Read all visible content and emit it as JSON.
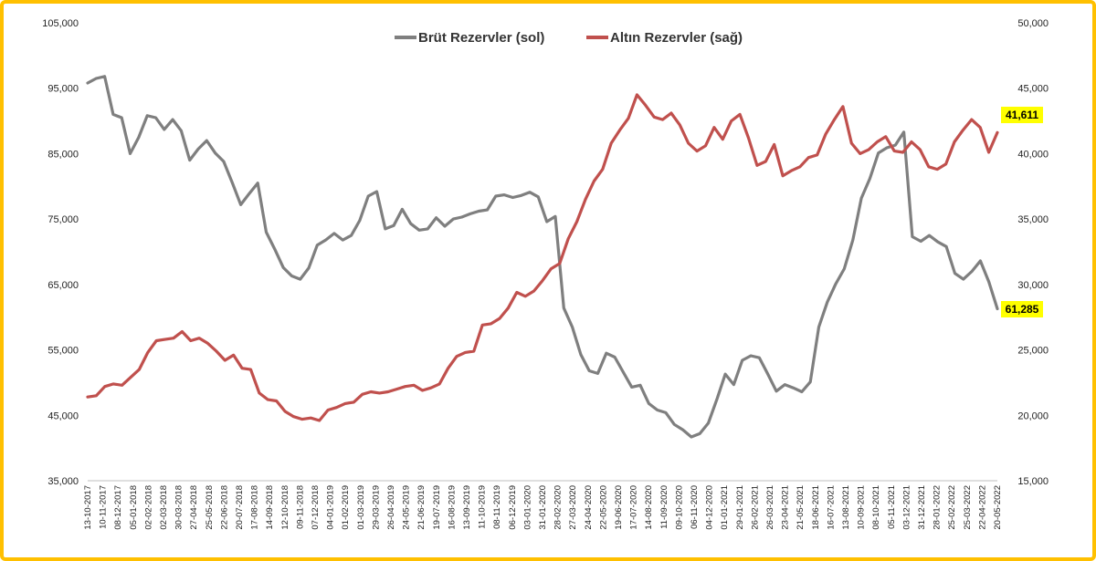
{
  "chart_data": {
    "type": "line",
    "title": "",
    "legend_position": "top-center",
    "grid": false,
    "x_ticks": [
      "13-10-2017",
      "10-11-2017",
      "08-12-2017",
      "05-01-2018",
      "02-02-2018",
      "02-03-2018",
      "30-03-2018",
      "27-04-2018",
      "25-05-2018",
      "22-06-2018",
      "20-07-2018",
      "17-08-2018",
      "14-09-2018",
      "12-10-2018",
      "09-11-2018",
      "07-12-2018",
      "04-01-2019",
      "01-02-2019",
      "01-03-2019",
      "29-03-2019",
      "26-04-2019",
      "24-05-2019",
      "21-06-2019",
      "19-07-2019",
      "16-08-2019",
      "13-09-2019",
      "11-10-2019",
      "08-11-2019",
      "06-12-2019",
      "03-01-2020",
      "31-01-2020",
      "28-02-2020",
      "27-03-2020",
      "24-04-2020",
      "22-05-2020",
      "19-06-2020",
      "17-07-2020",
      "14-08-2020",
      "11-09-2020",
      "09-10-2020",
      "06-11-2020",
      "04-12-2020",
      "01-01-2021",
      "29-01-2021",
      "26-02-2021",
      "26-03-2021",
      "23-04-2021",
      "21-05-2021",
      "18-06-2021",
      "16-07-2021",
      "13-08-2021",
      "10-09-2021",
      "08-10-2021",
      "05-11-2021",
      "03-12-2021",
      "31-12-2021",
      "28-01-2022",
      "25-02-2022",
      "25-03-2022",
      "22-04-2022",
      "20-05-2022"
    ],
    "y_left": {
      "ylim": [
        35000,
        105000
      ],
      "ticks": [
        "35,000",
        "45,000",
        "55,000",
        "65,000",
        "75,000",
        "85,000",
        "95,000",
        "105,000"
      ],
      "tick_values": [
        35000,
        45000,
        55000,
        65000,
        75000,
        85000,
        95000,
        105000
      ]
    },
    "y_right": {
      "ylim": [
        15000,
        50000
      ],
      "ticks": [
        "15,000",
        "20,000",
        "25,000",
        "30,000",
        "35,000",
        "40,000",
        "45,000",
        "50,000"
      ],
      "tick_values": [
        15000,
        20000,
        25000,
        30000,
        35000,
        40000,
        45000,
        50000
      ]
    },
    "series": [
      {
        "name": "Brüt Rezervler (sol)",
        "axis": "left",
        "color": "#7f7f7f",
        "values": [
          95800,
          96500,
          96800,
          91000,
          90500,
          85000,
          87500,
          90800,
          90500,
          88700,
          90200,
          88500,
          84000,
          85700,
          87000,
          85100,
          83800,
          80600,
          77200,
          78900,
          80500,
          73000,
          70400,
          67600,
          66300,
          65800,
          67500,
          71000,
          71800,
          72800,
          71800,
          72500,
          74800,
          78500,
          79200,
          73500,
          74000,
          76500,
          74300,
          73300,
          73500,
          75200,
          73900,
          75000,
          75300,
          75800,
          76200,
          76400,
          78500,
          78700,
          78300,
          78600,
          79100,
          78400,
          74600,
          75400,
          61400,
          58500,
          54300,
          51800,
          51400,
          54500,
          53900,
          51600,
          49300,
          49600,
          46800,
          45800,
          45400,
          43600,
          42800,
          41700,
          42200,
          43800,
          47400,
          51300,
          49700,
          53400,
          54100,
          53800,
          51300,
          48700,
          49700,
          49200,
          48600,
          50100,
          58500,
          62300,
          65100,
          67400,
          71800,
          78200,
          81200,
          85100,
          85900,
          86300,
          88300,
          72300,
          71600,
          72500,
          71500,
          70800,
          66700,
          65800,
          67000,
          68600,
          65400,
          61285
        ]
      },
      {
        "name": "Altın Rezervler (sağ)",
        "axis": "right",
        "color": "#c0504d",
        "values": [
          21400,
          21500,
          22200,
          22400,
          22300,
          22900,
          23500,
          24800,
          25700,
          25800,
          25900,
          26400,
          25700,
          25900,
          25500,
          24900,
          24200,
          24600,
          23600,
          23500,
          21700,
          21200,
          21100,
          20300,
          19900,
          19700,
          19800,
          19600,
          20400,
          20600,
          20900,
          21000,
          21600,
          21800,
          21700,
          21800,
          22000,
          22200,
          22300,
          21900,
          22100,
          22400,
          23600,
          24500,
          24800,
          24900,
          26900,
          27000,
          27400,
          28200,
          29400,
          29100,
          29500,
          30300,
          31200,
          31600,
          33500,
          34800,
          36500,
          37900,
          38800,
          40800,
          41800,
          42700,
          44500,
          43700,
          42800,
          42600,
          43100,
          42200,
          40800,
          40200,
          40600,
          42000,
          41100,
          42500,
          43000,
          41200,
          39100,
          39400,
          40700,
          38300,
          38700,
          39000,
          39700,
          39900,
          41500,
          42600,
          43600,
          40800,
          40000,
          40300,
          40900,
          41300,
          40200,
          40100,
          40900,
          40300,
          39000,
          38800,
          39200,
          40900,
          41800,
          42600,
          42000,
          40100,
          41611
        ]
      }
    ]
  },
  "end_labels": {
    "gold": "41,611",
    "gross": "61,285"
  },
  "colors": {
    "frame": "#ffc000",
    "highlight": "#ffff00"
  }
}
